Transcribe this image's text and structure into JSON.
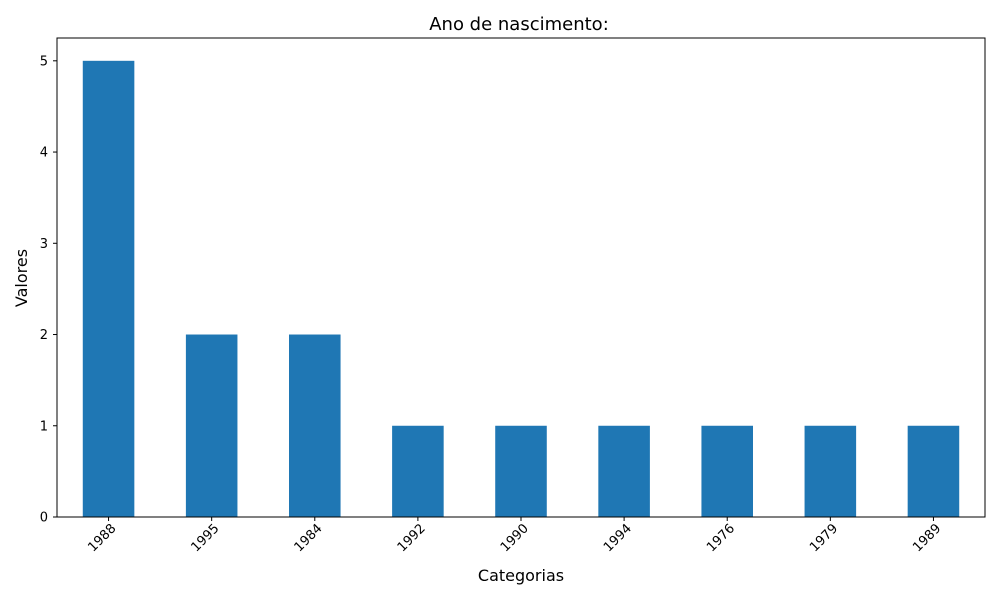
{
  "chart_data": {
    "type": "bar",
    "title": "Ano de nascimento:",
    "xlabel": "Categorias",
    "ylabel": "Valores",
    "categories": [
      "1988",
      "1995",
      "1984",
      "1992",
      "1990",
      "1994",
      "1976",
      "1979",
      "1989"
    ],
    "values": [
      5,
      2,
      2,
      1,
      1,
      1,
      1,
      1,
      1
    ],
    "ylim": [
      0,
      5.25
    ],
    "yticks": [
      "0",
      "1",
      "2",
      "3",
      "4",
      "5"
    ],
    "grid": false,
    "legend": "none",
    "bar_color": "#1f77b4"
  }
}
